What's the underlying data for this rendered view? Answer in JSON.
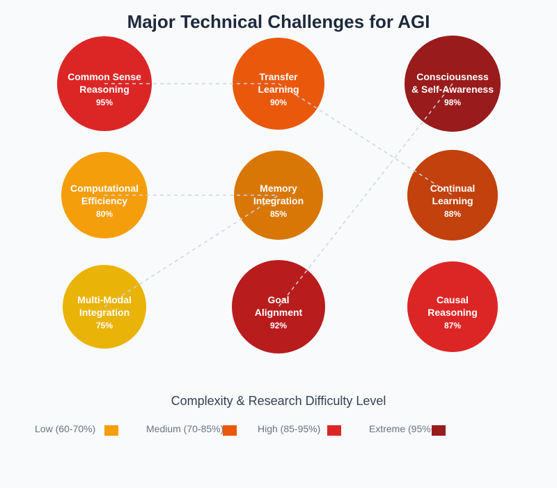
{
  "title": "Major Technical Challenges for AGI",
  "subtitle": "Complexity & Research Difficulty Level",
  "nodes": [
    {
      "id": "common-sense",
      "lines": [
        "Common Sense",
        "Reasoning"
      ],
      "value": "95%",
      "color": "#dc2626"
    },
    {
      "id": "transfer",
      "lines": [
        "Transfer",
        "Learning"
      ],
      "value": "90%",
      "color": "#ea580c"
    },
    {
      "id": "consciousness",
      "lines": [
        "Consciousness",
        "& Self-Awareness"
      ],
      "value": "98%",
      "color": "#991b1b"
    },
    {
      "id": "computational",
      "lines": [
        "Computational",
        "Efficiency"
      ],
      "value": "80%",
      "color": "#f59e0b"
    },
    {
      "id": "memory",
      "lines": [
        "Memory",
        "Integration"
      ],
      "value": "85%",
      "color": "#d97706"
    },
    {
      "id": "continual",
      "lines": [
        "Continual",
        "Learning"
      ],
      "value": "88%",
      "color": "#c2410c"
    },
    {
      "id": "multimodal",
      "lines": [
        "Multi-Modal",
        "Integration"
      ],
      "value": "75%",
      "color": "#eab308"
    },
    {
      "id": "goal",
      "lines": [
        "Goal",
        "Alignment"
      ],
      "value": "92%",
      "color": "#b91c1c"
    },
    {
      "id": "causal",
      "lines": [
        "Causal",
        "Reasoning"
      ],
      "value": "87%",
      "color": "#dc2626"
    }
  ],
  "links": [
    [
      "common-sense",
      "transfer"
    ],
    [
      "transfer",
      "continual"
    ],
    [
      "computational",
      "memory"
    ],
    [
      "multimodal",
      "memory"
    ],
    [
      "consciousness",
      "goal"
    ]
  ],
  "legend": [
    {
      "label": "Low (60-70%)",
      "color": "#f59e0b"
    },
    {
      "label": "Medium (70-85%)",
      "color": "#ea580c"
    },
    {
      "label": "High (85-95%)",
      "color": "#dc2626"
    },
    {
      "label": "Extreme (95%+)",
      "color": "#991b1b"
    }
  ]
}
